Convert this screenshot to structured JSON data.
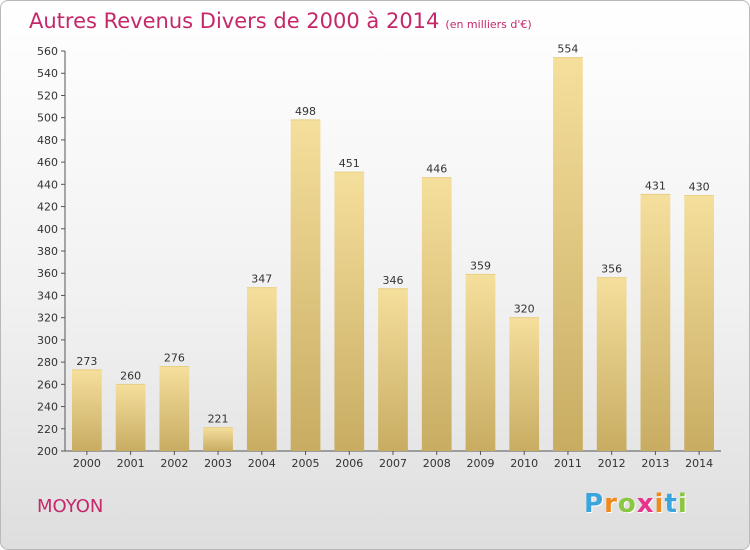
{
  "header": {
    "title": "Autres Revenus Divers de 2000 à 2014",
    "unit": "(en milliers d'€)"
  },
  "footer": {
    "town": "MOYON",
    "logo": [
      "P",
      "r",
      "o",
      "x",
      "i",
      "t",
      "i"
    ]
  },
  "colors": {
    "title": "#c5286a",
    "bar_top": "#f5df9c",
    "bar_bottom": "#c8ac62",
    "logo": [
      "#3aa5dd",
      "#f08a1c",
      "#8cc641",
      "#e8338a",
      "#f08a1c",
      "#3aa5dd",
      "#8cc641"
    ]
  },
  "chart_data": {
    "type": "bar",
    "title": "Autres Revenus Divers de 2000 à 2014",
    "subtitle": "(en milliers d'€)",
    "xlabel": "",
    "ylabel": "",
    "categories": [
      "2000",
      "2001",
      "2002",
      "2003",
      "2004",
      "2005",
      "2006",
      "2007",
      "2008",
      "2009",
      "2010",
      "2011",
      "2012",
      "2013",
      "2014"
    ],
    "values": [
      273,
      260,
      276,
      221,
      347,
      498,
      451,
      346,
      446,
      359,
      320,
      554,
      356,
      431,
      430
    ],
    "ylim": [
      200,
      560
    ],
    "ytick_step": 20,
    "grid": false
  }
}
